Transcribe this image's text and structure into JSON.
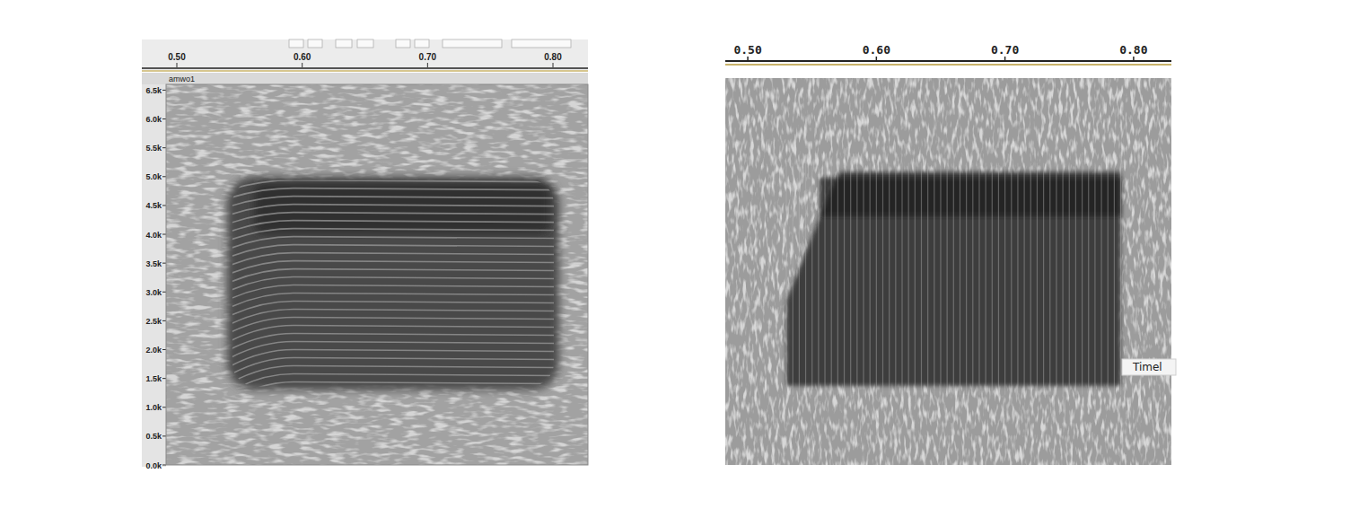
{
  "chart_data": [
    {
      "type": "spectrogram",
      "title": "amwo1",
      "xlim": [
        0.4914,
        0.8279
      ],
      "xticks": [
        {
          "value": 0.5,
          "label": "0.50"
        },
        {
          "value": 0.6,
          "label": "0.60"
        },
        {
          "value": 0.7,
          "label": "0.70"
        },
        {
          "value": 0.8,
          "label": "0.80"
        }
      ],
      "ylim": [
        0,
        6.6
      ],
      "yticks": [
        {
          "value": 0,
          "label": "0.0k"
        },
        {
          "value": 0.5,
          "label": "0.5k"
        },
        {
          "value": 1,
          "label": "1.0k"
        },
        {
          "value": 1.5,
          "label": "1.5k"
        },
        {
          "value": 2,
          "label": "2.0k"
        },
        {
          "value": 2.5,
          "label": "2.5k"
        },
        {
          "value": 3,
          "label": "3.0k"
        },
        {
          "value": 3.5,
          "label": "3.5k"
        },
        {
          "value": 4,
          "label": "4.0k"
        },
        {
          "value": 4.5,
          "label": "4.5k"
        },
        {
          "value": 5,
          "label": "5.0k"
        },
        {
          "value": 5.5,
          "label": "5.5k"
        },
        {
          "value": 6,
          "label": "6.0k"
        },
        {
          "value": 6.5,
          "label": "6.5k"
        }
      ],
      "signal": {
        "start": 0.54,
        "end": 0.805,
        "low": 1.3,
        "high": 5.0
      },
      "band": {
        "low": 4.0,
        "high": 4.9
      },
      "harmonic_spacing": 0.14
    },
    {
      "type": "spectrogram",
      "xlim": [
        0.4825,
        0.8294
      ],
      "xticks": [
        {
          "value": 0.5,
          "label": "0.50"
        },
        {
          "value": 0.6,
          "label": "0.60"
        },
        {
          "value": 0.7,
          "label": "0.70"
        },
        {
          "value": 0.8,
          "label": "0.80"
        }
      ],
      "ylim": [
        0,
        6.6
      ],
      "tick_labels": "x",
      "signal": {
        "start": 0.53,
        "end": 0.79,
        "low": 1.35,
        "high": 5.0
      },
      "band": {
        "low": 4.25,
        "high": 4.9
      },
      "pulse_interval": 0.005,
      "annotation": "Timel"
    }
  ]
}
